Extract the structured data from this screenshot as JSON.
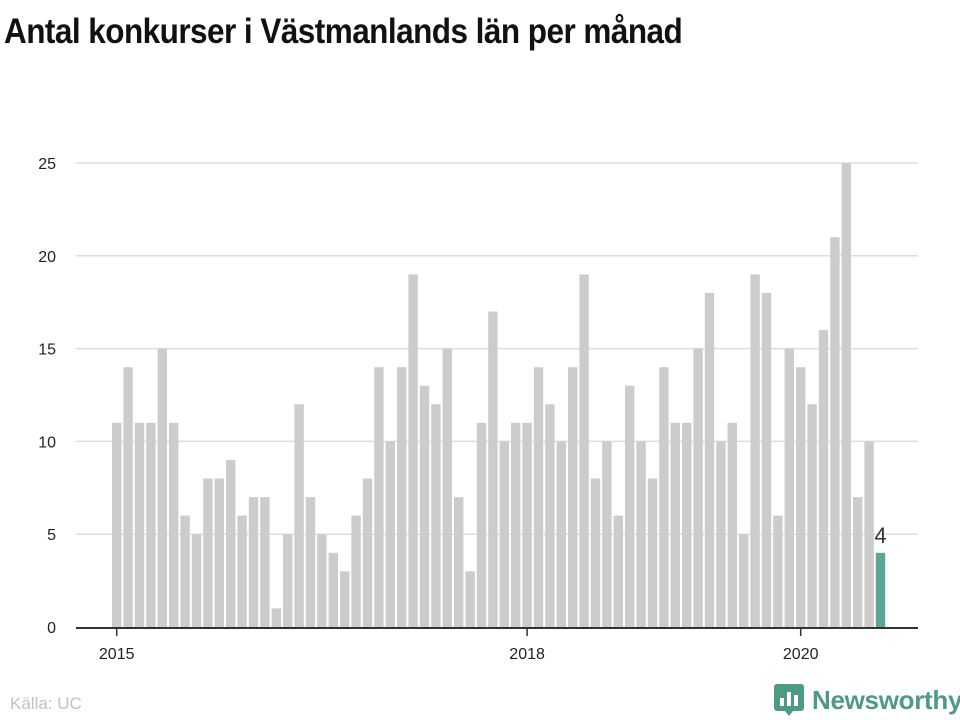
{
  "chart_data": {
    "type": "bar",
    "title": "Antal konkurser i Västmanlands län per månad",
    "start": "2015-01",
    "values": [
      11,
      14,
      11,
      11,
      15,
      11,
      6,
      5,
      8,
      8,
      9,
      6,
      7,
      7,
      1,
      5,
      12,
      7,
      5,
      4,
      3,
      6,
      8,
      14,
      10,
      14,
      19,
      13,
      12,
      15,
      7,
      3,
      11,
      17,
      10,
      11,
      11,
      14,
      12,
      10,
      14,
      19,
      8,
      10,
      6,
      13,
      10,
      8,
      14,
      11,
      11,
      15,
      18,
      10,
      11,
      5,
      19,
      18,
      6,
      15,
      14,
      12,
      16,
      21,
      25,
      7,
      10,
      4
    ],
    "highlight_value": "4",
    "xlabel": "",
    "ylabel": "",
    "ylim": [
      0,
      25
    ],
    "yticks": [
      "0",
      "5",
      "10",
      "15",
      "20",
      "25"
    ],
    "xticks": [
      {
        "label": "2015",
        "index": 0
      },
      {
        "label": "2018",
        "index": 36
      },
      {
        "label": "2020",
        "index": 60
      }
    ],
    "colors": {
      "bar": "#cccccc",
      "highlight": "#5da594",
      "grid": "#dddddd",
      "axis": "#333333"
    },
    "grid": true
  },
  "footer": {
    "source": "Källa: UC",
    "brand": "Newsworthy",
    "brand_color": "#4f9a85",
    "brand_icon": "newsworthy-logo-icon"
  }
}
